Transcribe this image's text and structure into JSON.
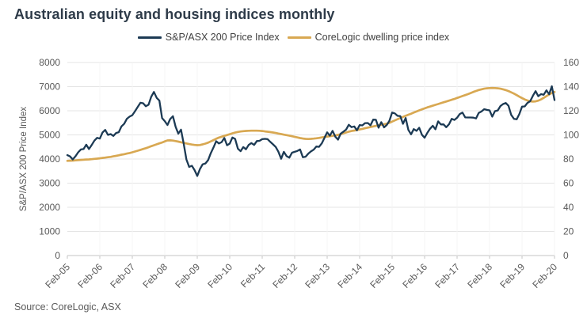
{
  "title": "Australian equity and housing indices monthly",
  "source": "Source: CoreLogic, ASX",
  "y_axis_title": "S&P/ASX 200 Price Index",
  "legend": [
    {
      "label": "S&P/ASX 200 Price Index",
      "color": "#1c3a54"
    },
    {
      "label": "CoreLogic dwelling price index",
      "color": "#d8a852"
    }
  ],
  "colors": {
    "navy_line": "#1c3a54",
    "tan_line": "#d8a852",
    "tick_text": "#595959",
    "gridline": "#e4e4e4",
    "axis_line": "#c4c4c4",
    "title_text": "#2e3b49"
  },
  "chart_data": {
    "type": "line",
    "title": "Australian equity and housing indices monthly",
    "frequency": "monthly",
    "start": "Feb-05",
    "end": "Feb-20",
    "grid": "horizontal-major",
    "legend_position": "top-center",
    "x_tick_labels": [
      "Feb-05",
      "Feb-06",
      "Feb-07",
      "Feb-08",
      "Feb-09",
      "Feb-10",
      "Feb-11",
      "Feb-12",
      "Feb-13",
      "Feb-14",
      "Feb-15",
      "Feb-16",
      "Feb-17",
      "Feb-18",
      "Feb-19",
      "Feb-20"
    ],
    "left_axis": {
      "label": "S&P/ASX 200 Price Index",
      "min": 0,
      "max": 8000,
      "tick_labels": [
        "0",
        "1000",
        "2000",
        "3000",
        "4000",
        "5000",
        "6000",
        "7000",
        "8000"
      ]
    },
    "right_axis": {
      "label": "",
      "min": 0,
      "max": 160,
      "tick_labels": [
        "0",
        "20",
        "40",
        "60",
        "80",
        "100",
        "120",
        "140",
        "160"
      ]
    },
    "series": [
      {
        "name": "S&P/ASX 200 Price Index",
        "axis": "left",
        "color": "#1c3a54",
        "data_name": "asx200-line",
        "values": [
          4161,
          4109,
          3984,
          4114,
          4278,
          4398,
          4414,
          4592,
          4412,
          4583,
          4763,
          4880,
          4846,
          5097,
          5206,
          5000,
          5034,
          4957,
          5080,
          5113,
          5352,
          5461,
          5670,
          5757,
          5816,
          5979,
          6158,
          6330,
          6310,
          6188,
          6248,
          6580,
          6779,
          6533,
          6421,
          5697,
          5572,
          5410,
          5657,
          5774,
          5333,
          5052,
          5216,
          4632,
          3983,
          3673,
          3722,
          3540,
          3297,
          3582,
          3781,
          3818,
          3955,
          4244,
          4479,
          4739,
          4646,
          4702,
          4871,
          4570,
          4638,
          4893,
          4833,
          4430,
          4325,
          4494,
          4404,
          4583,
          4662,
          4584,
          4745,
          4754,
          4824,
          4837,
          4823,
          4708,
          4608,
          4500,
          4297,
          4009,
          4298,
          4119,
          4057,
          4263,
          4298,
          4335,
          4396,
          4076,
          4095,
          4220,
          4316,
          4387,
          4517,
          4506,
          4649,
          4879,
          5104,
          4966,
          5168,
          4926,
          4803,
          5052,
          5135,
          5219,
          5420,
          5320,
          5352,
          5190,
          5405,
          5395,
          5490,
          5493,
          5396,
          5633,
          5625,
          5297,
          5527,
          5313,
          5411,
          5588,
          5928,
          5892,
          5790,
          5777,
          5459,
          5699,
          5207,
          5022,
          5239,
          5166,
          5296,
          5006,
          4881,
          5083,
          5252,
          5378,
          5233,
          5562,
          5433,
          5436,
          5318,
          5440,
          5666,
          5621,
          5712,
          5865,
          5924,
          5725,
          5721,
          5720,
          5715,
          5682,
          5909,
          5970,
          6065,
          6037,
          6016,
          5759,
          5982,
          6012,
          6195,
          6280,
          6320,
          6208,
          5830,
          5667,
          5646,
          5865,
          6169,
          6181,
          6326,
          6397,
          6619,
          6813,
          6604,
          6688,
          6663,
          6846,
          6684,
          7017,
          6441
        ]
      },
      {
        "name": "CoreLogic dwelling price index",
        "axis": "right",
        "color": "#d8a852",
        "data_name": "corelogic-line",
        "values": [
          78.5,
          78.6,
          78.7,
          78.9,
          79.1,
          79.3,
          79.4,
          79.6,
          79.7,
          79.9,
          80.1,
          80.3,
          80.6,
          80.9,
          81.2,
          81.5,
          81.8,
          82.2,
          82.6,
          83.1,
          83.6,
          84.0,
          84.5,
          85.0,
          85.6,
          86.2,
          86.9,
          87.6,
          88.3,
          89.0,
          89.8,
          90.6,
          91.4,
          92.2,
          93.0,
          93.7,
          94.6,
          95.4,
          95.5,
          95.3,
          94.9,
          94.4,
          93.9,
          93.4,
          92.9,
          92.4,
          92.0,
          91.7,
          91.5,
          91.6,
          92.1,
          92.8,
          93.6,
          94.6,
          95.7,
          96.8,
          97.8,
          98.5,
          99.2,
          99.9,
          100.6,
          101.3,
          101.9,
          102.4,
          102.8,
          103.1,
          103.3,
          103.4,
          103.5,
          103.5,
          103.5,
          103.4,
          103.2,
          102.9,
          102.6,
          102.3,
          102.0,
          101.6,
          101.1,
          100.7,
          100.2,
          99.8,
          99.4,
          98.9,
          98.4,
          97.9,
          97.4,
          97.0,
          96.7,
          96.6,
          96.7,
          96.9,
          97.2,
          97.5,
          97.9,
          98.3,
          98.6,
          98.9,
          99.2,
          99.6,
          100.0,
          100.6,
          101.3,
          102.0,
          102.7,
          103.2,
          103.6,
          104.0,
          104.5,
          105.0,
          105.5,
          106.0,
          106.5,
          107.0,
          107.5,
          108.0,
          108.4,
          108.8,
          109.3,
          110.0,
          111.0,
          112.0,
          113.0,
          114.0,
          114.9,
          115.8,
          116.7,
          117.6,
          118.5,
          119.4,
          120.3,
          121.2,
          122.0,
          122.8,
          123.5,
          124.2,
          124.9,
          125.6,
          126.3,
          127.0,
          127.7,
          128.4,
          129.1,
          129.8,
          130.6,
          131.4,
          132.2,
          133.0,
          133.8,
          134.7,
          135.6,
          136.4,
          137.2,
          137.8,
          138.3,
          138.6,
          138.8,
          138.9,
          138.8,
          138.6,
          138.3,
          137.8,
          137.1,
          136.3,
          135.3,
          134.2,
          133.0,
          131.7,
          130.5,
          129.4,
          128.5,
          127.9,
          127.6,
          127.8,
          128.4,
          129.4,
          130.7,
          132.1,
          133.5,
          134.7,
          135.6
        ]
      }
    ]
  }
}
